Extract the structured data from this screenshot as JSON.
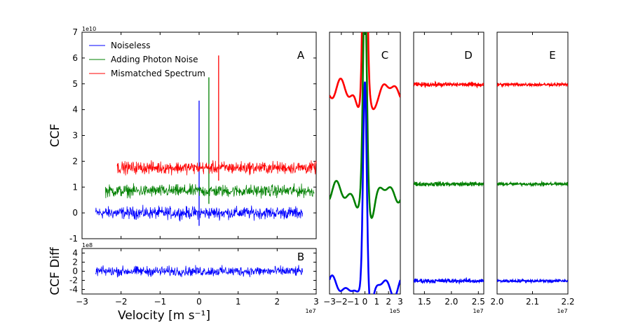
{
  "chart_data": [
    {
      "panel": "A",
      "type": "line",
      "xlabel": "",
      "ylabel": "CCF",
      "xlim": [
        -3,
        3
      ],
      "x_offset_label": "1e7",
      "ylim": [
        -1,
        7
      ],
      "y_offset_label": "1e10",
      "xticks": [
        -3,
        -2,
        -1,
        0,
        1,
        2,
        3
      ],
      "yticks": [
        -1,
        0,
        1,
        2,
        3,
        4,
        5,
        6,
        7
      ],
      "legend": {
        "position": "top-left"
      },
      "series": [
        {
          "name": "Noiseless",
          "color": "#0000ff",
          "x_range": [
            -2.65,
            2.65
          ],
          "baseline": 0.0,
          "noise_amplitude": 0.35,
          "peak_x": 0.0,
          "peak_y": 4.35
        },
        {
          "name": "Adding Photon Noise",
          "color": "#008000",
          "x_range": [
            -2.4,
            2.95
          ],
          "baseline": 0.85,
          "noise_amplitude": 0.35,
          "peak_x": 0.25,
          "peak_y": 5.25
        },
        {
          "name": "Mismatched Spectrum",
          "color": "#ff0000",
          "x_range": [
            -2.1,
            3.0
          ],
          "baseline": 1.75,
          "noise_amplitude": 0.35,
          "peak_x": 0.5,
          "peak_y": 6.1
        }
      ]
    },
    {
      "panel": "B",
      "type": "line",
      "ylabel": "CCF Diff",
      "xlabel": "Velocity [m s⁻¹]",
      "xlim": [
        -3,
        3
      ],
      "x_offset_label": "1e7",
      "ylim": [
        -5,
        5
      ],
      "y_offset_label": "1e8",
      "xticks": [
        -3,
        -2,
        -1,
        0,
        1,
        2,
        3
      ],
      "yticks": [
        -4,
        -2,
        0,
        2,
        4
      ],
      "series": [
        {
          "color": "#0000ff",
          "x_range": [
            -2.65,
            2.65
          ],
          "baseline": 0,
          "noise_amplitude": 1.6
        }
      ]
    },
    {
      "panel": "C",
      "type": "line",
      "xlim": [
        -3,
        3
      ],
      "x_offset_label": "1e5",
      "xticks": [
        -3,
        -2,
        -1,
        0,
        1,
        2,
        3
      ],
      "xtick_labels": [
        "−3",
        "−2",
        "−1",
        "0",
        "1",
        "2",
        "3"
      ],
      "series": [
        {
          "color": "#ff0000",
          "baseline": 0.78,
          "peak": 1.78
        },
        {
          "color": "#008000",
          "baseline": 0.39,
          "peak": 1.17
        },
        {
          "color": "#0000ff",
          "baseline": 0.03,
          "peak": 0.84
        }
      ]
    },
    {
      "panel": "D",
      "type": "line",
      "xlim": [
        1.3,
        2.6
      ],
      "x_offset_label": "1e7",
      "xticks": [
        1.5,
        2.0,
        2.5
      ],
      "xtick_labels": [
        "1.5",
        "2.0",
        "2.5"
      ],
      "series": [
        {
          "color": "#ff0000",
          "baseline": 0.8
        },
        {
          "color": "#008000",
          "baseline": 0.42
        },
        {
          "color": "#0000ff",
          "baseline": 0.05
        }
      ]
    },
    {
      "panel": "E",
      "type": "line",
      "xlim": [
        2.0,
        2.2
      ],
      "x_offset_label": "1e7",
      "xticks": [
        2.0,
        2.1,
        2.2
      ],
      "xtick_labels": [
        "2.0",
        "2.1",
        "2.2"
      ],
      "series": [
        {
          "color": "#ff0000",
          "baseline": 0.8
        },
        {
          "color": "#008000",
          "baseline": 0.42
        },
        {
          "color": "#0000ff",
          "baseline": 0.05
        }
      ]
    }
  ]
}
